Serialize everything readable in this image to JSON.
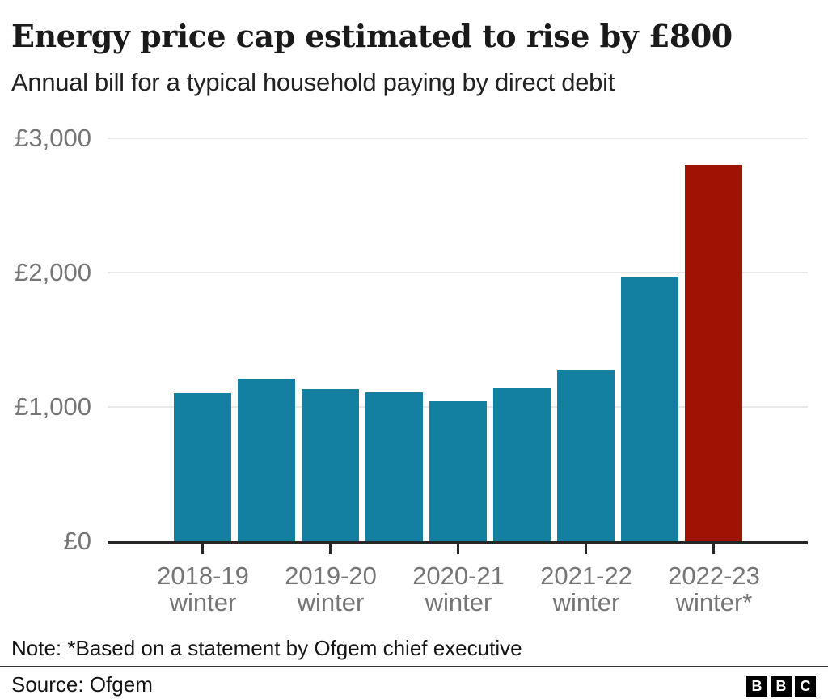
{
  "chart_data": {
    "type": "bar",
    "title": "Energy price cap estimated to rise by £800",
    "subtitle": "Annual bill for a typical household paying by direct debit",
    "xlabel": "",
    "ylabel": "",
    "ylim": [
      0,
      3000
    ],
    "grid": "horizontal",
    "legend": "none",
    "yticks": [
      {
        "value": 0,
        "label": "£0"
      },
      {
        "value": 1000,
        "label": "£1,000"
      },
      {
        "value": 2000,
        "label": "£2,000"
      },
      {
        "value": 3000,
        "label": "£3,000"
      }
    ],
    "categories": [
      "2018-19 winter",
      "2019-20 winter",
      "2020-21 winter",
      "2021-22 winter",
      "2022-23 winter*"
    ],
    "x_tick_lines": [
      [
        "2018-19",
        "winter"
      ],
      [
        "2019-20",
        "winter"
      ],
      [
        "2020-21",
        "winter"
      ],
      [
        "2021-22",
        "winter"
      ],
      [
        "2022-23",
        "winter*"
      ]
    ],
    "bars_per_category": 2,
    "values": [
      1100,
      1210,
      1130,
      1110,
      1040,
      1140,
      1280,
      1970,
      2800
    ],
    "highlight_index": 8,
    "colors": {
      "bar": "#1380A1",
      "highlight": "#A01202",
      "gridline": "#E8E8E8",
      "axis_line": "#262626",
      "tick_label": "#757575"
    }
  },
  "note": {
    "text": "Note: *Based on a statement by Ofgem chief executive"
  },
  "footer": {
    "source": "Source: Ofgem",
    "logo_letters": [
      "B",
      "B",
      "C"
    ]
  }
}
